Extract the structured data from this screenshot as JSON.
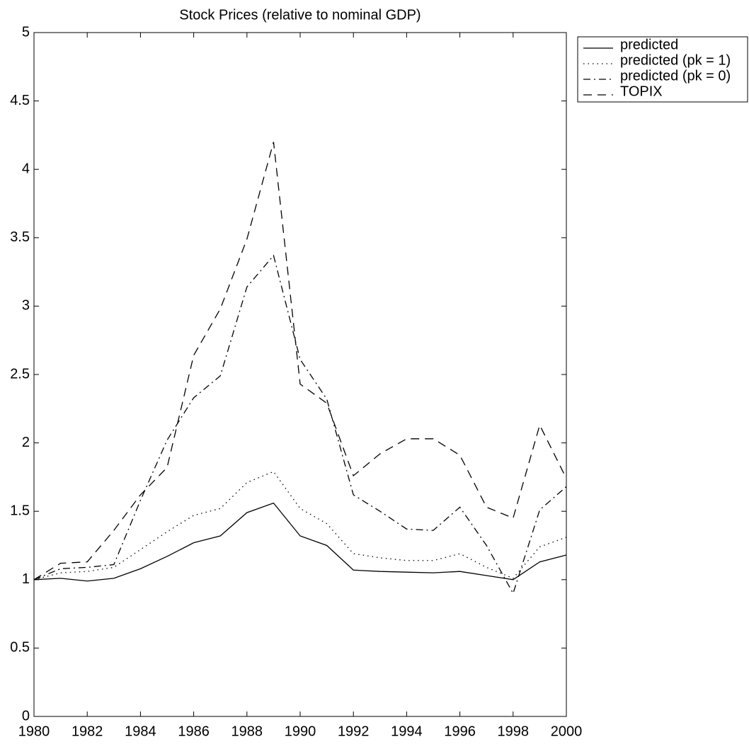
{
  "chart_data": {
    "type": "line",
    "title": "Stock Prices (relative to nominal GDP)",
    "x": [
      1980,
      1981,
      1982,
      1983,
      1984,
      1985,
      1986,
      1987,
      1988,
      1989,
      1990,
      1991,
      1992,
      1993,
      1994,
      1995,
      1996,
      1997,
      1998,
      1999,
      2000
    ],
    "series": [
      {
        "name": "predicted",
        "color": "#000000",
        "line_style": "solid",
        "values": [
          1.0,
          1.01,
          0.99,
          1.01,
          1.08,
          1.17,
          1.27,
          1.32,
          1.49,
          1.56,
          1.32,
          1.25,
          1.07,
          1.06,
          1.055,
          1.05,
          1.06,
          1.03,
          1.0,
          1.13,
          1.18
        ]
      },
      {
        "name": "predicted (pk = 1)",
        "color": "#000000",
        "line_style": "dotted",
        "values": [
          1.0,
          1.05,
          1.06,
          1.09,
          1.22,
          1.35,
          1.47,
          1.52,
          1.71,
          1.79,
          1.52,
          1.41,
          1.19,
          1.16,
          1.14,
          1.14,
          1.19,
          1.09,
          1.01,
          1.24,
          1.31
        ]
      },
      {
        "name": "predicted (pk = 0)",
        "color": "#000000",
        "line_style": "dashdot",
        "values": [
          1.0,
          1.08,
          1.09,
          1.11,
          1.58,
          2.02,
          2.33,
          2.49,
          3.14,
          3.37,
          2.61,
          2.32,
          1.62,
          1.5,
          1.37,
          1.36,
          1.53,
          1.25,
          0.9,
          1.51,
          1.68
        ]
      },
      {
        "name": "TOPIX",
        "color": "#000000",
        "line_style": "dashed",
        "values": [
          1.0,
          1.12,
          1.13,
          1.36,
          1.62,
          1.82,
          2.64,
          2.98,
          3.49,
          4.2,
          2.43,
          2.29,
          1.76,
          1.92,
          2.03,
          2.03,
          1.91,
          1.53,
          1.45,
          2.13,
          1.74
        ]
      }
    ],
    "xlim": [
      1980,
      2000
    ],
    "xticks": [
      1980,
      1982,
      1984,
      1986,
      1988,
      1990,
      1992,
      1994,
      1996,
      1998,
      2000
    ],
    "ylim": [
      0,
      5
    ],
    "yticks": [
      0,
      0.5,
      1,
      1.5,
      2,
      2.5,
      3,
      3.5,
      4,
      4.5,
      5
    ],
    "grid": false,
    "legend": "outside-top-right"
  }
}
